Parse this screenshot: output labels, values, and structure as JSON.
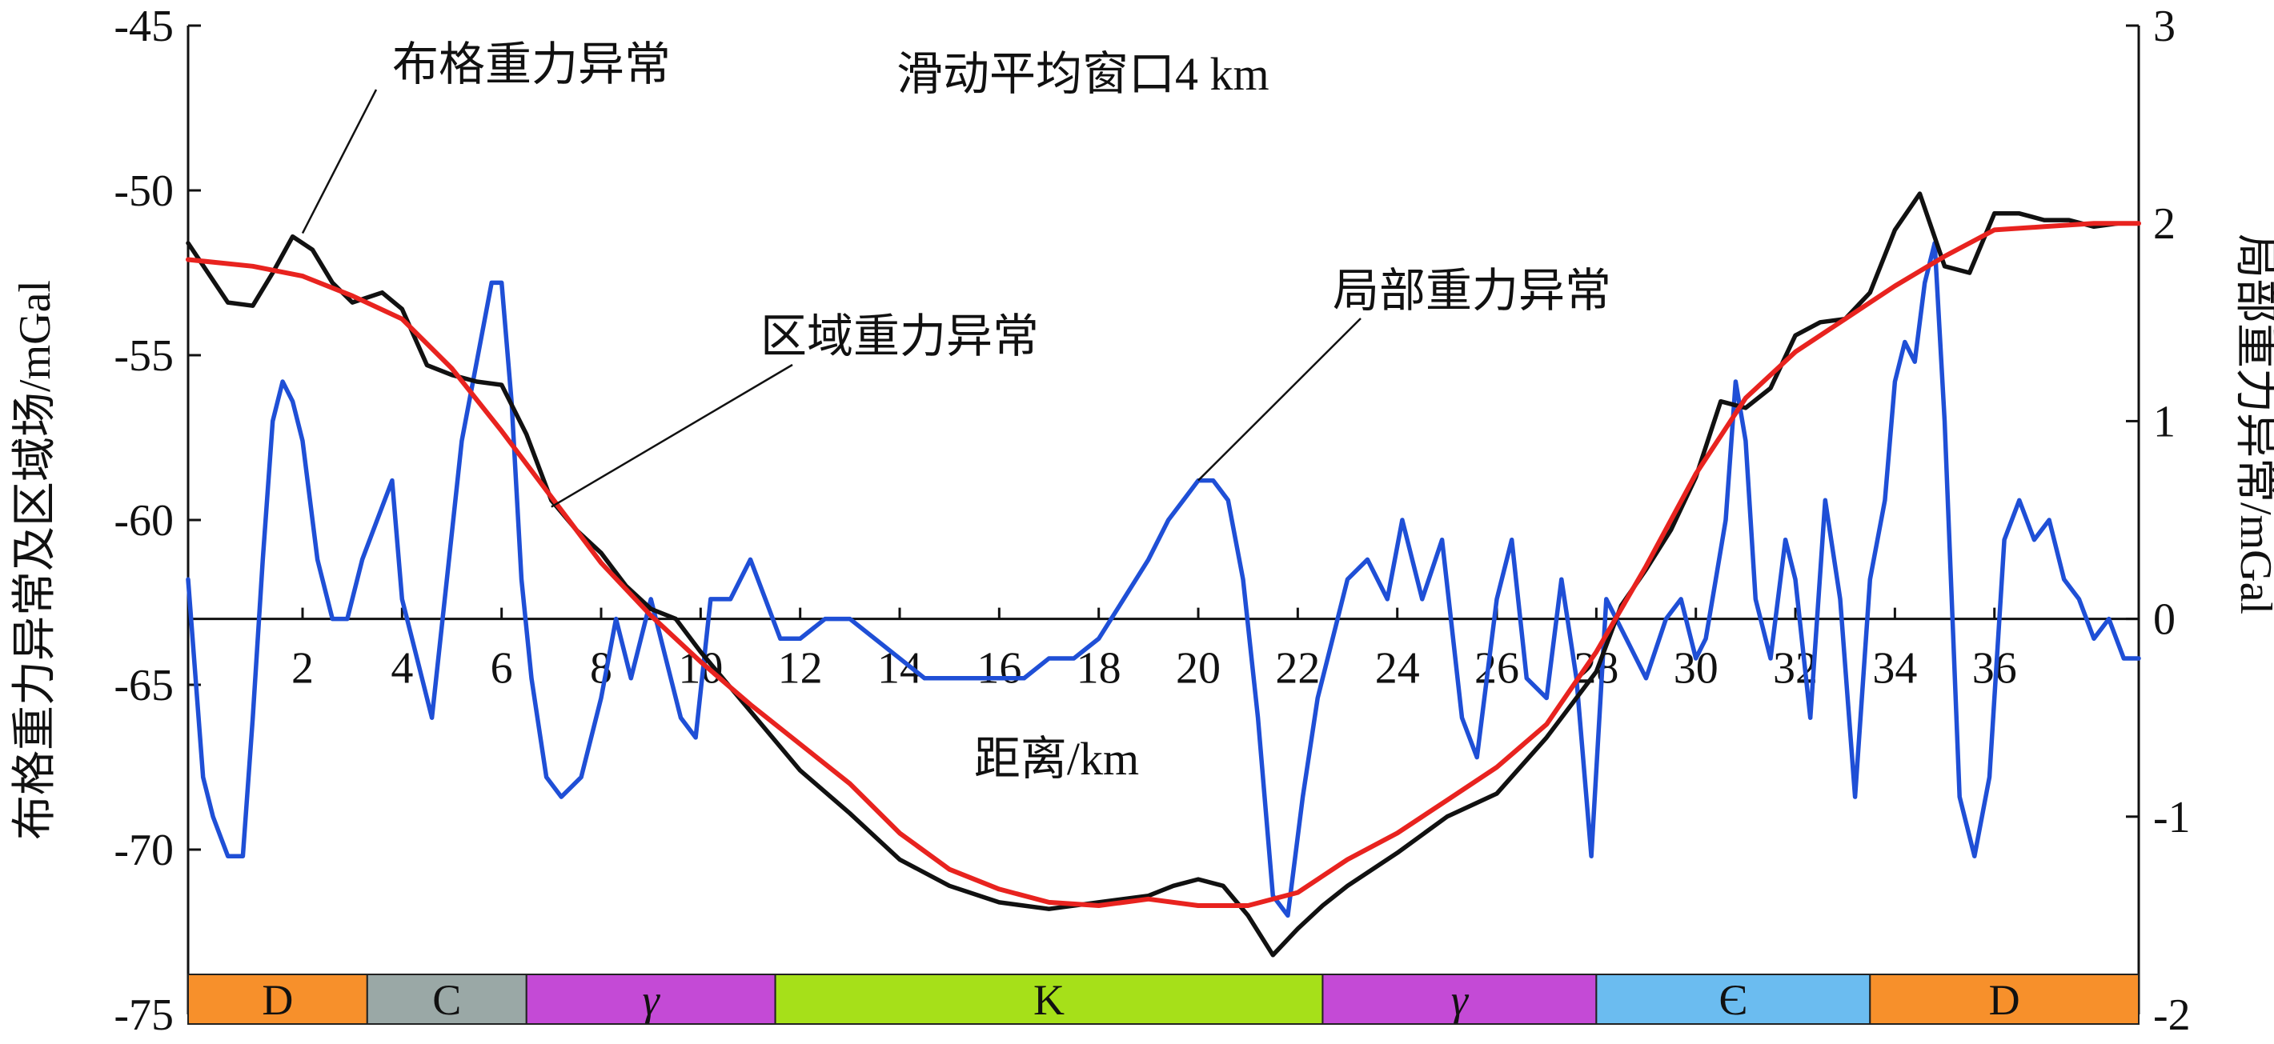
{
  "chart_data": {
    "type": "line",
    "title": "",
    "window_note": "滑动平均窗口4 km",
    "xlabel": "距离/km",
    "ylabel_left": "布格重力异常及区域场/mGal",
    "ylabel_right": "局部重力异常/mGal",
    "xlim": [
      -0.3,
      38.9
    ],
    "ylim_left": [
      -75,
      -45
    ],
    "ylim_right": [
      -2,
      3
    ],
    "x_ticks": [
      2,
      4,
      6,
      8,
      10,
      12,
      14,
      16,
      18,
      20,
      22,
      24,
      26,
      28,
      30,
      32,
      34,
      36
    ],
    "y_ticks_left": [
      -45,
      -50,
      -55,
      -60,
      -65,
      -70,
      -75
    ],
    "y_ticks_right": [
      3,
      2,
      1,
      0,
      -1,
      -2
    ],
    "series": [
      {
        "name": "布格重力异常",
        "axis": "left",
        "color": "#111111",
        "x": [
          -0.3,
          0.5,
          1.0,
          1.4,
          1.8,
          2.2,
          2.6,
          3.0,
          3.6,
          4.0,
          4.5,
          5.0,
          5.5,
          6.0,
          6.5,
          7.0,
          7.5,
          8.0,
          8.5,
          9.0,
          9.5,
          10.0,
          11.0,
          12.0,
          13.0,
          14.0,
          15.0,
          16.0,
          17.0,
          18.0,
          19.0,
          19.5,
          20.0,
          20.5,
          21.0,
          21.5,
          22.0,
          22.5,
          23.0,
          24.0,
          25.0,
          26.0,
          27.0,
          28.0,
          28.5,
          29.0,
          29.5,
          30.0,
          30.5,
          31.0,
          31.5,
          32.0,
          32.5,
          33.0,
          33.5,
          34.0,
          34.5,
          35.0,
          35.5,
          36.0,
          36.5,
          37.0,
          37.5,
          38.0,
          38.5,
          38.9
        ],
        "y": [
          -51.6,
          -53.4,
          -53.5,
          -52.5,
          -51.4,
          -51.8,
          -52.8,
          -53.4,
          -53.1,
          -53.6,
          -55.3,
          -55.6,
          -55.8,
          -55.9,
          -57.4,
          -59.4,
          -60.3,
          -61.0,
          -62.0,
          -62.7,
          -63.0,
          -64.0,
          -65.8,
          -67.6,
          -68.9,
          -70.3,
          -71.1,
          -71.6,
          -71.8,
          -71.6,
          -71.4,
          -71.1,
          -70.9,
          -71.1,
          -72.0,
          -73.2,
          -72.4,
          -71.7,
          -71.1,
          -70.1,
          -69.0,
          -68.3,
          -66.6,
          -64.6,
          -62.6,
          -61.5,
          -60.3,
          -58.7,
          -56.4,
          -56.6,
          -56.0,
          -54.4,
          -54.0,
          -53.9,
          -53.1,
          -51.2,
          -50.1,
          -52.3,
          -52.5,
          -50.7,
          -50.7,
          -50.9,
          -50.9,
          -51.1,
          -51.0,
          -51.0
        ]
      },
      {
        "name": "区域重力异常",
        "axis": "left",
        "color": "#e8231f",
        "x": [
          -0.3,
          1.0,
          2.0,
          3.0,
          4.0,
          5.0,
          6.0,
          7.0,
          8.0,
          9.0,
          10.0,
          11.0,
          12.0,
          13.0,
          14.0,
          15.0,
          16.0,
          17.0,
          18.0,
          19.0,
          20.0,
          21.0,
          22.0,
          23.0,
          24.0,
          25.0,
          26.0,
          27.0,
          28.0,
          29.0,
          30.0,
          31.0,
          32.0,
          33.0,
          34.0,
          35.0,
          36.0,
          37.0,
          38.0,
          38.9
        ],
        "y": [
          -52.1,
          -52.3,
          -52.6,
          -53.2,
          -53.9,
          -55.4,
          -57.3,
          -59.3,
          -61.3,
          -62.9,
          -64.3,
          -65.6,
          -66.8,
          -68.0,
          -69.5,
          -70.6,
          -71.2,
          -71.6,
          -71.7,
          -71.5,
          -71.7,
          -71.7,
          -71.3,
          -70.3,
          -69.5,
          -68.5,
          -67.5,
          -66.2,
          -64.0,
          -61.4,
          -58.6,
          -56.3,
          -54.9,
          -53.9,
          -52.9,
          -52.0,
          -51.2,
          -51.1,
          -51.0,
          -51.0
        ]
      },
      {
        "name": "局部重力异常",
        "axis": "right",
        "color": "#1f4fd6",
        "x": [
          -0.3,
          0.0,
          0.2,
          0.5,
          0.8,
          1.0,
          1.2,
          1.4,
          1.6,
          1.8,
          2.0,
          2.3,
          2.6,
          2.9,
          3.2,
          3.5,
          3.8,
          4.0,
          4.3,
          4.6,
          4.9,
          5.2,
          5.5,
          5.8,
          6.0,
          6.2,
          6.4,
          6.6,
          6.9,
          7.2,
          7.6,
          8.0,
          8.3,
          8.6,
          9.0,
          9.3,
          9.6,
          9.9,
          10.2,
          10.6,
          11.0,
          11.3,
          11.6,
          12.0,
          12.5,
          13.0,
          13.5,
          14.0,
          14.5,
          15.0,
          15.5,
          16.0,
          16.5,
          17.0,
          17.5,
          18.0,
          18.5,
          19.0,
          19.4,
          19.7,
          20.0,
          20.3,
          20.6,
          20.9,
          21.2,
          21.5,
          21.8,
          22.1,
          22.4,
          22.7,
          23.0,
          23.4,
          23.8,
          24.1,
          24.5,
          24.9,
          25.3,
          25.6,
          26.0,
          26.3,
          26.6,
          27.0,
          27.3,
          27.6,
          27.9,
          28.2,
          28.6,
          29.0,
          29.4,
          29.7,
          30.0,
          30.2,
          30.4,
          30.6,
          30.8,
          31.0,
          31.2,
          31.5,
          31.8,
          32.0,
          32.3,
          32.6,
          32.9,
          33.2,
          33.5,
          33.8,
          34.0,
          34.2,
          34.4,
          34.6,
          34.8,
          35.0,
          35.3,
          35.6,
          35.9,
          36.2,
          36.5,
          36.8,
          37.1,
          37.4,
          37.7,
          38.0,
          38.3,
          38.6,
          38.9
        ],
        "y": [
          0.2,
          -0.8,
          -1.0,
          -1.2,
          -1.2,
          -0.5,
          0.3,
          1.0,
          1.2,
          1.1,
          0.9,
          0.3,
          0.0,
          0.0,
          0.3,
          0.5,
          0.7,
          0.1,
          -0.2,
          -0.5,
          0.2,
          0.9,
          1.3,
          1.7,
          1.7,
          1.1,
          0.2,
          -0.3,
          -0.8,
          -0.9,
          -0.8,
          -0.4,
          0.0,
          -0.3,
          0.1,
          -0.2,
          -0.5,
          -0.6,
          0.1,
          0.1,
          0.3,
          0.1,
          -0.1,
          -0.1,
          0.0,
          0.0,
          -0.1,
          -0.2,
          -0.3,
          -0.3,
          -0.3,
          -0.3,
          -0.3,
          -0.2,
          -0.2,
          -0.1,
          0.1,
          0.3,
          0.5,
          0.6,
          0.7,
          0.7,
          0.6,
          0.2,
          -0.5,
          -1.4,
          -1.5,
          -0.9,
          -0.4,
          -0.1,
          0.2,
          0.3,
          0.1,
          0.5,
          0.1,
          0.4,
          -0.5,
          -0.7,
          0.1,
          0.4,
          -0.3,
          -0.4,
          0.2,
          -0.3,
          -1.2,
          0.1,
          -0.1,
          -0.3,
          0.0,
          0.1,
          -0.2,
          -0.1,
          0.2,
          0.5,
          1.2,
          0.9,
          0.1,
          -0.2,
          0.4,
          0.2,
          -0.5,
          0.6,
          0.1,
          -0.9,
          0.2,
          0.6,
          1.2,
          1.4,
          1.3,
          1.7,
          1.9,
          1.0,
          -0.9,
          -1.2,
          -0.8,
          0.4,
          0.6,
          0.4,
          0.5,
          0.2,
          0.1,
          -0.1,
          0.0,
          -0.2,
          -0.2
        ]
      }
    ],
    "annotations": [
      {
        "text": "布格重力异常",
        "x": 2.0,
        "y_left": -51.3
      },
      {
        "text": "区域重力异常",
        "x": 7.0,
        "y_left": -59.6
      },
      {
        "text": "局部重力异常",
        "x": 20.0,
        "y_right": 0.7
      }
    ],
    "strata": [
      {
        "label": "D",
        "x0": -0.3,
        "x1": 3.3,
        "color": "#f7902b"
      },
      {
        "label": "C",
        "x0": 3.3,
        "x1": 6.5,
        "color": "#9aa8a6"
      },
      {
        "label": "γ",
        "x0": 6.5,
        "x1": 11.5,
        "color": "#c44ad6"
      },
      {
        "label": "K",
        "x0": 11.5,
        "x1": 22.5,
        "color": "#a6e019"
      },
      {
        "label": "γ",
        "x0": 22.5,
        "x1": 28.0,
        "color": "#c44ad6"
      },
      {
        "label": "Є",
        "x0": 28.0,
        "x1": 33.5,
        "color": "#6bbcf0"
      },
      {
        "label": "D",
        "x0": 33.5,
        "x1": 38.9,
        "color": "#f7902b"
      }
    ]
  }
}
